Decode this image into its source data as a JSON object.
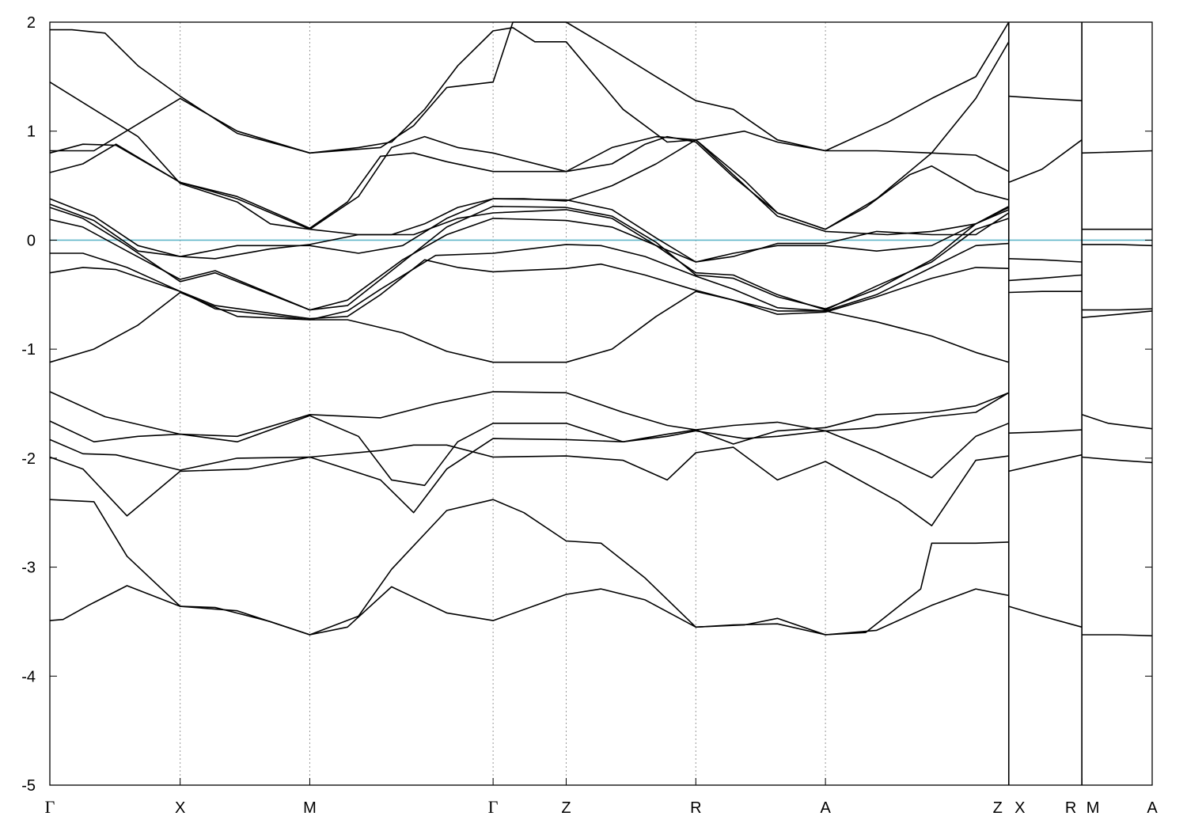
{
  "chart_data": {
    "type": "line",
    "title": "",
    "xlabel": "",
    "ylabel": "",
    "ylim": [
      -5,
      2
    ],
    "yticks": [
      2,
      1,
      0,
      -1,
      -2,
      -3,
      -4,
      -5
    ],
    "ytick_labels": [
      "2",
      "1",
      "0",
      "-1",
      "-2",
      "-3",
      "-4",
      "-5"
    ],
    "xlim": [
      0,
      1
    ],
    "kpath": [
      {
        "label": "Γ",
        "x": 0.0
      },
      {
        "label": "X",
        "x": 0.1182
      },
      {
        "label": "M",
        "x": 0.2358
      },
      {
        "label": "Γ",
        "x": 0.4021
      },
      {
        "label": "Z",
        "x": 0.4684
      },
      {
        "label": "R",
        "x": 0.586
      },
      {
        "label": "A",
        "x": 0.7036
      },
      {
        "label": "Z",
        "x": 0.8699
      },
      {
        "label": "X",
        "x": 0.8699
      },
      {
        "label": "R",
        "x": 0.9362
      },
      {
        "label": "M",
        "x": 0.9362
      },
      {
        "label": "A",
        "x": 1.0
      }
    ],
    "vertical_lines_at": [
      0.1182,
      0.2358,
      0.4021,
      0.4684,
      0.586,
      0.7036,
      0.8699,
      0.9362
    ],
    "fermi_level": {
      "y": 0,
      "color": "#5fb5c8"
    },
    "grid": "dotted vertical lines at high-symmetry points",
    "line_color": "#000000",
    "segment_breaks": [
      0.8699,
      0.9362
    ],
    "series": [
      {
        "x": [
          0,
          0.012,
          0.035,
          0.07,
          0.1182,
          0.15,
          0.2,
          0.2358,
          0.27,
          0.31,
          0.36,
          0.4021,
          0.4684,
          0.5,
          0.54,
          0.586,
          0.62,
          0.66,
          0.7036,
          0.75,
          0.8,
          0.84,
          0.8699
        ],
        "y": [
          -3.49,
          -3.48,
          -3.35,
          -3.17,
          -3.36,
          -3.37,
          -3.5,
          -3.62,
          -3.55,
          -3.18,
          -3.42,
          -3.49,
          -3.25,
          -3.2,
          -3.3,
          -3.55,
          -3.53,
          -3.52,
          -3.62,
          -3.58,
          -3.35,
          -3.2,
          -3.26
        ]
      },
      {
        "x": [
          0,
          0.04,
          0.07,
          0.1182,
          0.17,
          0.2358,
          0.28,
          0.31,
          0.36,
          0.4021,
          0.43,
          0.4684,
          0.5,
          0.54,
          0.586,
          0.63,
          0.66,
          0.7036,
          0.74,
          0.79,
          0.8,
          0.84,
          0.8699
        ],
        "y": [
          -2.38,
          -2.4,
          -2.9,
          -3.36,
          -3.4,
          -3.62,
          -3.45,
          -3.02,
          -2.48,
          -2.38,
          -2.5,
          -2.76,
          -2.78,
          -3.1,
          -3.55,
          -3.53,
          -3.47,
          -3.62,
          -3.6,
          -3.2,
          -2.78,
          -2.78,
          -2.77
        ]
      },
      {
        "x": [
          0,
          0.03,
          0.07,
          0.1182,
          0.18,
          0.2358,
          0.3,
          0.33,
          0.36,
          0.4021,
          0.4684,
          0.52,
          0.56,
          0.586,
          0.62,
          0.66,
          0.7036,
          0.77,
          0.8,
          0.84,
          0.8699
        ],
        "y": [
          -1.99,
          -2.1,
          -2.53,
          -2.12,
          -2.1,
          -1.99,
          -1.93,
          -1.88,
          -1.88,
          -1.99,
          -1.98,
          -2.02,
          -2.2,
          -1.95,
          -1.9,
          -2.2,
          -2.03,
          -2.4,
          -2.62,
          -2.02,
          -1.98
        ]
      },
      {
        "x": [
          0,
          0.03,
          0.06,
          0.1182,
          0.17,
          0.2358,
          0.3,
          0.33,
          0.36,
          0.4021,
          0.4684,
          0.52,
          0.56,
          0.586,
          0.63,
          0.66,
          0.7036,
          0.75,
          0.8,
          0.84,
          0.8699
        ],
        "y": [
          -1.83,
          -1.96,
          -1.97,
          -2.11,
          -2.0,
          -1.99,
          -2.2,
          -2.5,
          -2.1,
          -1.82,
          -1.83,
          -1.85,
          -1.8,
          -1.75,
          -1.82,
          -1.8,
          -1.75,
          -1.94,
          -2.18,
          -1.8,
          -1.68
        ]
      },
      {
        "x": [
          0,
          0.04,
          0.08,
          0.1182,
          0.17,
          0.2358,
          0.28,
          0.31,
          0.34,
          0.37,
          0.4021,
          0.4684,
          0.52,
          0.56,
          0.586,
          0.62,
          0.66,
          0.7036,
          0.75,
          0.8,
          0.84,
          0.8699
        ],
        "y": [
          -1.66,
          -1.85,
          -1.8,
          -1.78,
          -1.85,
          -1.61,
          -1.8,
          -2.2,
          -2.25,
          -1.85,
          -1.68,
          -1.68,
          -1.85,
          -1.78,
          -1.74,
          -1.7,
          -1.67,
          -1.75,
          -1.72,
          -1.62,
          -1.58,
          -1.4
        ]
      },
      {
        "x": [
          0,
          0.05,
          0.1182,
          0.17,
          0.2358,
          0.3,
          0.35,
          0.4021,
          0.4684,
          0.52,
          0.56,
          0.586,
          0.62,
          0.66,
          0.7036,
          0.75,
          0.8,
          0.84,
          0.8699
        ],
        "y": [
          -1.39,
          -1.62,
          -1.78,
          -1.8,
          -1.6,
          -1.63,
          -1.5,
          -1.39,
          -1.4,
          -1.58,
          -1.7,
          -1.74,
          -1.87,
          -1.75,
          -1.72,
          -1.6,
          -1.58,
          -1.52,
          -1.4
        ]
      },
      {
        "x": [
          0,
          0.04,
          0.08,
          0.1182,
          0.17,
          0.2358,
          0.27,
          0.32,
          0.36,
          0.4021,
          0.4684,
          0.51,
          0.55,
          0.586,
          0.62,
          0.66,
          0.7036,
          0.75,
          0.8,
          0.84,
          0.8699
        ],
        "y": [
          -1.12,
          -1.0,
          -0.78,
          -0.48,
          -0.7,
          -0.73,
          -0.73,
          -0.85,
          -1.02,
          -1.12,
          -1.12,
          -1.0,
          -0.7,
          -0.47,
          -0.55,
          -0.65,
          -0.65,
          -0.75,
          -0.88,
          -1.03,
          -1.12
        ]
      },
      {
        "x": [
          0,
          0.03,
          0.06,
          0.1182,
          0.15,
          0.2358,
          0.27,
          0.3,
          0.34,
          0.37,
          0.4021,
          0.4684,
          0.5,
          0.54,
          0.586,
          0.62,
          0.66,
          0.7036,
          0.75,
          0.8,
          0.84,
          0.8699
        ],
        "y": [
          -0.3,
          -0.25,
          -0.27,
          -0.47,
          -0.6,
          -0.72,
          -0.7,
          -0.5,
          -0.18,
          -0.25,
          -0.29,
          -0.26,
          -0.22,
          -0.32,
          -0.46,
          -0.55,
          -0.68,
          -0.66,
          -0.52,
          -0.35,
          -0.25,
          -0.26
        ]
      },
      {
        "x": [
          0,
          0.03,
          0.07,
          0.1182,
          0.15,
          0.2358,
          0.27,
          0.3,
          0.35,
          0.4021,
          0.4684,
          0.5,
          0.54,
          0.586,
          0.62,
          0.66,
          0.7036,
          0.75,
          0.8,
          0.84,
          0.8699
        ],
        "y": [
          -0.12,
          -0.12,
          -0.25,
          -0.47,
          -0.63,
          -0.73,
          -0.65,
          -0.45,
          -0.14,
          -0.12,
          -0.04,
          -0.05,
          -0.15,
          -0.33,
          -0.45,
          -0.62,
          -0.65,
          -0.5,
          -0.25,
          -0.05,
          -0.03
        ]
      },
      {
        "x": [
          0,
          0.03,
          0.07,
          0.1182,
          0.15,
          0.2358,
          0.27,
          0.32,
          0.36,
          0.4021,
          0.4684,
          0.51,
          0.55,
          0.586,
          0.62,
          0.66,
          0.7036,
          0.75,
          0.8,
          0.84,
          0.8699
        ],
        "y": [
          0.19,
          0.12,
          -0.1,
          -0.36,
          -0.28,
          -0.64,
          -0.55,
          -0.18,
          0.05,
          0.2,
          0.18,
          0.12,
          -0.05,
          -0.3,
          -0.32,
          -0.5,
          -0.64,
          -0.42,
          -0.2,
          0.1,
          0.2
        ]
      },
      {
        "x": [
          0,
          0.03,
          0.07,
          0.1182,
          0.15,
          0.2358,
          0.27,
          0.32,
          0.36,
          0.4021,
          0.4684,
          0.51,
          0.55,
          0.586,
          0.62,
          0.66,
          0.7036,
          0.75,
          0.8,
          0.84,
          0.8699
        ],
        "y": [
          0.3,
          0.2,
          -0.05,
          -0.38,
          -0.3,
          -0.64,
          -0.6,
          -0.2,
          0.12,
          0.31,
          0.3,
          0.22,
          -0.02,
          -0.32,
          -0.35,
          -0.52,
          -0.63,
          -0.45,
          -0.18,
          0.15,
          0.28
        ]
      },
      {
        "x": [
          0,
          0.04,
          0.08,
          0.1182,
          0.17,
          0.2358,
          0.28,
          0.32,
          0.36,
          0.4021,
          0.4684,
          0.51,
          0.55,
          0.586,
          0.62,
          0.66,
          0.7036,
          0.75,
          0.8,
          0.84,
          0.8699
        ],
        "y": [
          0.38,
          0.22,
          -0.05,
          -0.15,
          -0.05,
          -0.05,
          -0.12,
          -0.05,
          0.2,
          0.38,
          0.37,
          0.28,
          0.02,
          -0.2,
          -0.12,
          -0.05,
          -0.05,
          -0.1,
          -0.05,
          0.15,
          0.31
        ]
      },
      {
        "x": [
          0,
          0.04,
          0.08,
          0.1182,
          0.15,
          0.2,
          0.2358,
          0.28,
          0.33,
          0.37,
          0.4021,
          0.4684,
          0.51,
          0.55,
          0.586,
          0.62,
          0.66,
          0.7036,
          0.75,
          0.8,
          0.84,
          0.8699
        ],
        "y": [
          0.33,
          0.18,
          -0.1,
          -0.15,
          -0.17,
          -0.08,
          -0.04,
          0.05,
          0.05,
          0.2,
          0.25,
          0.28,
          0.2,
          -0.05,
          -0.2,
          -0.15,
          -0.03,
          -0.03,
          0.08,
          0.05,
          0.05,
          0.25
        ]
      },
      {
        "x": [
          0,
          0.03,
          0.06,
          0.1182,
          0.17,
          0.2358,
          0.27,
          0.3,
          0.33,
          0.36,
          0.4021,
          0.4684,
          0.51,
          0.54,
          0.56,
          0.586,
          0.62,
          0.66,
          0.7036,
          0.74,
          0.78,
          0.8,
          0.84,
          0.8699
        ],
        "y": [
          0.62,
          0.7,
          0.88,
          0.53,
          0.4,
          0.11,
          0.35,
          0.77,
          0.8,
          0.72,
          0.63,
          0.63,
          0.7,
          0.88,
          0.95,
          0.9,
          0.58,
          0.25,
          0.1,
          0.3,
          0.6,
          0.68,
          0.45,
          0.37
        ]
      },
      {
        "x": [
          0,
          0.03,
          0.06,
          0.1182,
          0.17,
          0.2358,
          0.28,
          0.31,
          0.34,
          0.37,
          0.4021,
          0.4684,
          0.51,
          0.55,
          0.586,
          0.62,
          0.66,
          0.7036,
          0.76,
          0.8,
          0.84,
          0.8699
        ],
        "y": [
          0.8,
          0.88,
          0.87,
          0.53,
          0.38,
          0.1,
          0.4,
          0.85,
          0.95,
          0.85,
          0.8,
          0.63,
          0.85,
          0.95,
          0.92,
          0.6,
          0.22,
          0.08,
          0.05,
          0.08,
          0.15,
          0.3
        ]
      },
      {
        "x": [
          0,
          0.04,
          0.08,
          0.1182,
          0.17,
          0.2,
          0.2358,
          0.28,
          0.31,
          0.34,
          0.37,
          0.4021,
          0.43,
          0.4684,
          0.51,
          0.55,
          0.586,
          0.63,
          0.66,
          0.7036,
          0.75,
          0.8,
          0.84,
          0.8699
        ],
        "y": [
          1.45,
          1.2,
          0.95,
          0.52,
          0.35,
          0.15,
          0.1,
          0.05,
          0.05,
          0.15,
          0.3,
          0.38,
          0.38,
          0.36,
          0.5,
          0.7,
          0.92,
          0.55,
          0.25,
          0.1,
          0.38,
          0.8,
          1.3,
          1.82
        ]
      },
      {
        "x": [
          0,
          0.04,
          0.1182,
          0.17,
          0.2358,
          0.28,
          0.31,
          0.34,
          0.37,
          0.4021,
          0.42,
          0.44,
          0.4684,
          0.52,
          0.56,
          0.586,
          0.63,
          0.66,
          0.7036,
          0.75,
          0.8,
          0.84,
          0.8699
        ],
        "y": [
          0.82,
          0.82,
          1.3,
          1.0,
          0.8,
          0.85,
          0.9,
          1.2,
          1.6,
          1.92,
          1.95,
          1.82,
          1.82,
          1.2,
          0.9,
          0.92,
          1.0,
          0.9,
          0.82,
          0.82,
          0.8,
          0.78,
          0.63
        ]
      },
      {
        "x": [
          0,
          0.02,
          0.05,
          0.08,
          0.1182,
          0.17,
          0.2358,
          0.3,
          0.33,
          0.36,
          0.4021,
          0.42,
          0.4684,
          0.51,
          0.55,
          0.586,
          0.62,
          0.66,
          0.7036,
          0.76,
          0.8,
          0.84,
          0.8699
        ],
        "y": [
          1.93,
          1.93,
          1.9,
          1.6,
          1.32,
          0.98,
          0.8,
          0.85,
          1.05,
          1.4,
          1.45,
          2.0,
          2.0,
          1.75,
          1.5,
          1.28,
          1.2,
          0.92,
          0.82,
          1.08,
          1.3,
          1.5,
          2.0
        ]
      },
      {
        "x": [
          0.8699,
          0.9,
          0.9362
        ],
        "y": [
          -3.36,
          -3.45,
          -3.55
        ]
      },
      {
        "x": [
          0.8699,
          0.9,
          0.9362
        ],
        "y": [
          -2.12,
          -2.05,
          -1.97
        ]
      },
      {
        "x": [
          0.8699,
          0.9,
          0.9362
        ],
        "y": [
          -1.77,
          -1.76,
          -1.74
        ]
      },
      {
        "x": [
          0.8699,
          0.9,
          0.9362
        ],
        "y": [
          -0.48,
          -0.47,
          -0.47
        ]
      },
      {
        "x": [
          0.8699,
          0.9,
          0.9362
        ],
        "y": [
          -0.37,
          -0.35,
          -0.32
        ]
      },
      {
        "x": [
          0.8699,
          0.9,
          0.9362
        ],
        "y": [
          -0.17,
          -0.18,
          -0.2
        ]
      },
      {
        "x": [
          0.8699,
          0.9,
          0.9362
        ],
        "y": [
          0.53,
          0.65,
          0.92
        ]
      },
      {
        "x": [
          0.8699,
          0.9,
          0.9362
        ],
        "y": [
          1.32,
          1.3,
          1.28
        ]
      },
      {
        "x": [
          0.9362,
          0.97,
          1.0
        ],
        "y": [
          -3.62,
          -3.62,
          -3.63
        ]
      },
      {
        "x": [
          0.9362,
          0.97,
          1.0
        ],
        "y": [
          -1.99,
          -2.02,
          -2.04
        ]
      },
      {
        "x": [
          0.9362,
          0.96,
          1.0
        ],
        "y": [
          -1.6,
          -1.68,
          -1.73
        ]
      },
      {
        "x": [
          0.9362,
          0.97,
          1.0
        ],
        "y": [
          -0.71,
          -0.68,
          -0.65
        ]
      },
      {
        "x": [
          0.9362,
          0.97,
          1.0
        ],
        "y": [
          -0.64,
          -0.64,
          -0.63
        ]
      },
      {
        "x": [
          0.9362,
          0.97,
          1.0
        ],
        "y": [
          -0.04,
          -0.04,
          -0.05
        ]
      },
      {
        "x": [
          0.9362,
          0.97,
          1.0
        ],
        "y": [
          0.1,
          0.1,
          0.1
        ]
      },
      {
        "x": [
          0.9362,
          0.97,
          1.0
        ],
        "y": [
          0.8,
          0.81,
          0.82
        ]
      }
    ]
  }
}
